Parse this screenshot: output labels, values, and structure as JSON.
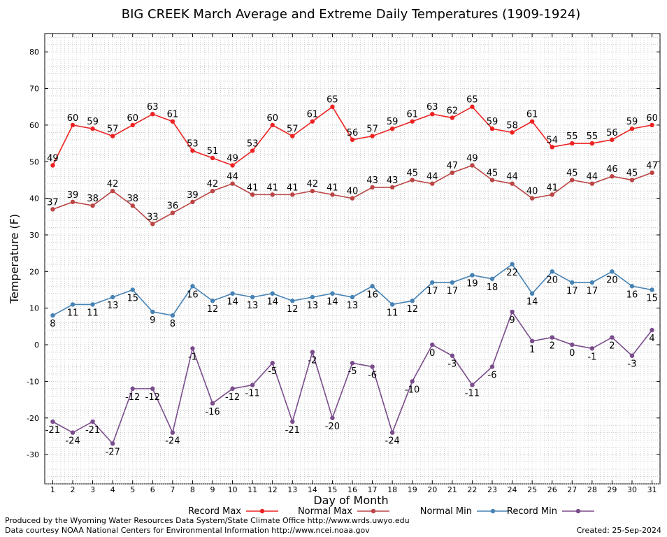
{
  "chart_data": {
    "type": "line",
    "title": "BIG CREEK March Average and Extreme Daily Temperatures (1909-1924)",
    "xlabel": "Day of Month",
    "ylabel": "Temperature (F)",
    "x": [
      1,
      2,
      3,
      4,
      5,
      6,
      7,
      8,
      9,
      10,
      11,
      12,
      13,
      14,
      15,
      16,
      17,
      18,
      19,
      20,
      21,
      22,
      23,
      24,
      25,
      26,
      27,
      28,
      29,
      30,
      31
    ],
    "xlim": [
      0.6,
      31.4
    ],
    "ylim": [
      -38,
      85
    ],
    "yticks": [
      -30,
      -20,
      -10,
      0,
      10,
      20,
      30,
      40,
      50,
      60,
      70,
      80
    ],
    "grid": true,
    "legend_position": "bottom",
    "series": [
      {
        "name": "Record Max",
        "color": "#ee2222",
        "label_pos": "above",
        "values": [
          49,
          60,
          59,
          57,
          60,
          63,
          61,
          53,
          51,
          49,
          53,
          60,
          57,
          61,
          65,
          56,
          57,
          59,
          61,
          63,
          62,
          65,
          59,
          58,
          61,
          54,
          55,
          55,
          56,
          59,
          60
        ]
      },
      {
        "name": "Normal Max",
        "color": "#bb4444",
        "label_pos": "above",
        "values": [
          37,
          39,
          38,
          42,
          38,
          33,
          36,
          39,
          42,
          44,
          41,
          41,
          41,
          42,
          41,
          40,
          43,
          43,
          45,
          44,
          47,
          49,
          45,
          44,
          40,
          41,
          45,
          44,
          46,
          45,
          47
        ]
      },
      {
        "name": "Normal Min",
        "color": "#4682b4",
        "label_pos": "below",
        "values": [
          8,
          11,
          11,
          13,
          15,
          9,
          8,
          16,
          12,
          14,
          13,
          14,
          12,
          13,
          14,
          13,
          16,
          11,
          12,
          17,
          17,
          19,
          18,
          22,
          14,
          20,
          17,
          17,
          20,
          16,
          15
        ]
      },
      {
        "name": "Record Min",
        "color": "#7a4c8c",
        "label_pos": "below",
        "values": [
          -21,
          -24,
          -21,
          -27,
          -12,
          -12,
          -24,
          -1,
          -16,
          -12,
          -11,
          -5,
          -21,
          -2,
          -20,
          -5,
          -6,
          -24,
          -10,
          0,
          -3,
          -11,
          -6,
          9,
          1,
          2,
          0,
          -1,
          2,
          -3,
          4
        ]
      }
    ]
  },
  "footer": {
    "produced_by": "Produced by the Wyoming Water Resources Data System/State Climate Office http://www.wrds.uwyo.edu",
    "courtesy": "Data courtesy NOAA National Centers for Environmental Information http://www.ncei.noaa.gov",
    "created": "Created:  25-Sep-2024"
  }
}
